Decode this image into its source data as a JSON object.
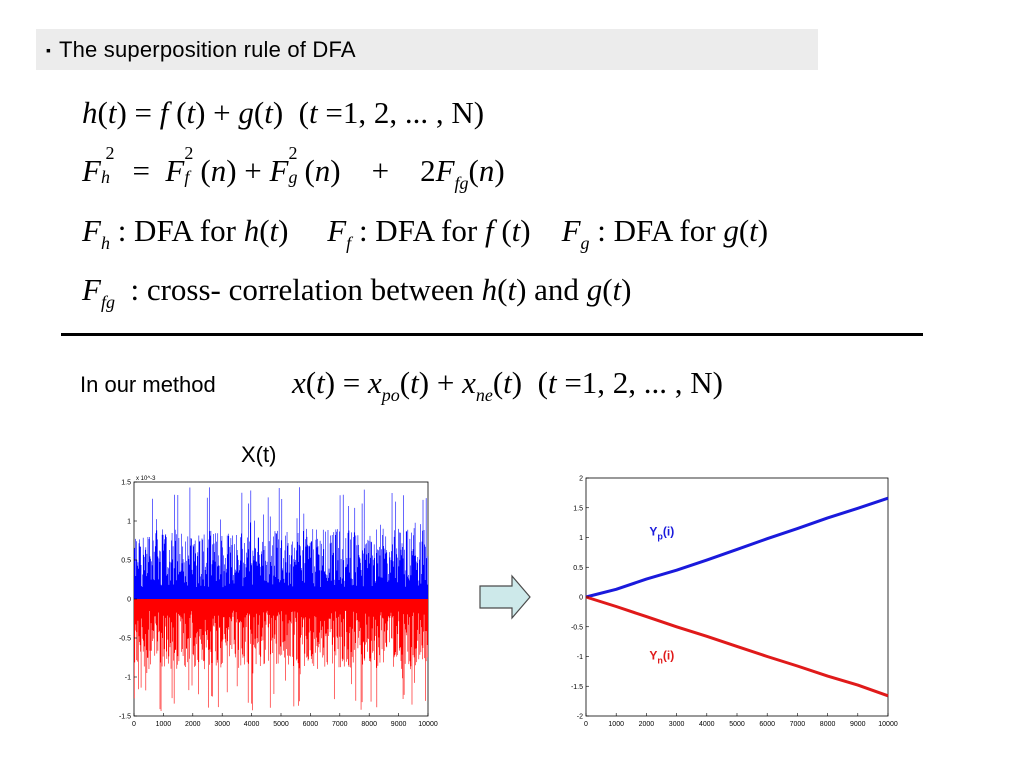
{
  "header": {
    "bullet": "▪",
    "title": "The superposition rule of DFA"
  },
  "equations": {
    "eq1": "h(t) = f (t) + g(t)  (t =1, 2, ... , N)",
    "eq2": "F_h^2 = F_f^2(n) + F_g^2(n) + 2F_fg(n)",
    "eq3": "F_h : DFA for h(t)   F_f : DFA for f (t)   F_g : DFA for g(t)",
    "eq4": "F_fg : cross-correlation between h(t) and g(t)",
    "method_eq": "x(t) = x_po(t) + x_ne(t)  (t =1, 2, ... , N)"
  },
  "method_label": "In our method",
  "left_chart_title": "X(t)",
  "chart_data": [
    {
      "type": "area",
      "title": "X(t)",
      "xlabel": "",
      "ylabel": "",
      "xlim": [
        0,
        10000
      ],
      "ylim": [
        -1.5,
        1.5
      ],
      "y_scale_note": "x 10^-3",
      "x_ticks": [
        0,
        1000,
        2000,
        3000,
        4000,
        5000,
        6000,
        7000,
        8000,
        9000,
        10000
      ],
      "y_ticks": [
        -1.5,
        -1,
        -0.5,
        0,
        0.5,
        1,
        1.5
      ],
      "series": [
        {
          "color": "#0000ff",
          "description": "positive increments",
          "typical_max": 0.9,
          "peak_max": 1.45
        },
        {
          "color": "#ff0000",
          "description": "negative increments",
          "typical_min": -0.9,
          "peak_min": -1.45
        }
      ],
      "grid": false
    },
    {
      "type": "line",
      "xlim": [
        0,
        10000
      ],
      "ylim": [
        -2,
        2
      ],
      "x_ticks": [
        0,
        1000,
        2000,
        3000,
        4000,
        5000,
        6000,
        7000,
        8000,
        9000,
        10000
      ],
      "y_ticks": [
        -2,
        -1.5,
        -1,
        -0.5,
        0,
        0.5,
        1,
        1.5,
        2
      ],
      "series": [
        {
          "name": "Yp(i)",
          "label_main": "Y",
          "label_sub": "p",
          "label_tail": "(i)",
          "color": "#1a1adc",
          "x": [
            0,
            1000,
            2000,
            3000,
            4000,
            5000,
            6000,
            7000,
            8000,
            9000,
            10000
          ],
          "y": [
            0,
            0.13,
            0.3,
            0.45,
            0.62,
            0.8,
            0.98,
            1.15,
            1.33,
            1.49,
            1.66
          ]
        },
        {
          "name": "Yn(i)",
          "label_main": "Y",
          "label_sub": "n",
          "label_tail": "(i)",
          "color": "#e01a1a",
          "x": [
            0,
            1000,
            2000,
            3000,
            4000,
            5000,
            6000,
            7000,
            8000,
            9000,
            10000
          ],
          "y": [
            0,
            -0.16,
            -0.33,
            -0.5,
            -0.66,
            -0.83,
            -1.0,
            -1.16,
            -1.33,
            -1.48,
            -1.66
          ]
        }
      ],
      "grid": false
    }
  ],
  "colors": {
    "arrow_fill": "#cde9ea",
    "arrow_stroke": "#4a4a4a",
    "title_bar": "#ececec"
  }
}
